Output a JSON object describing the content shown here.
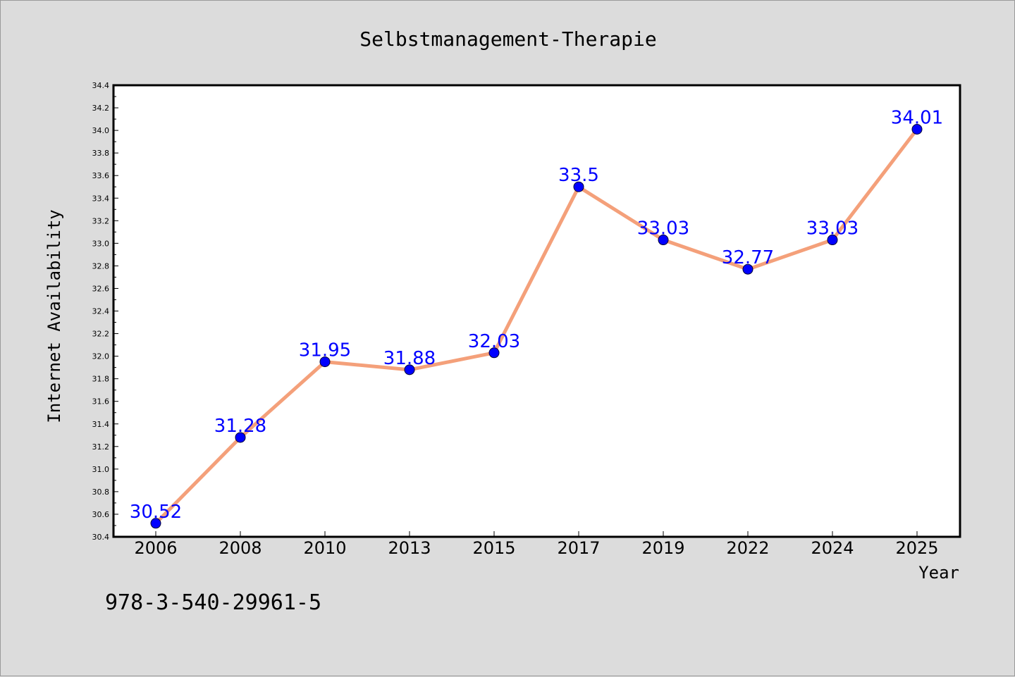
{
  "chart_data": {
    "type": "line",
    "title": "Selbstmanagement-Therapie",
    "xlabel": "Year",
    "ylabel": "Internet Availability",
    "categories": [
      "2006",
      "2008",
      "2010",
      "2013",
      "2015",
      "2017",
      "2019",
      "2022",
      "2024",
      "2025"
    ],
    "series": [
      {
        "values": [
          30.52,
          31.28,
          31.95,
          31.88,
          32.03,
          33.5,
          33.03,
          32.77,
          33.03,
          34.01
        ]
      }
    ],
    "data_labels": [
      "30.52",
      "31.28",
      "31.95",
      "31.88",
      "32.03",
      "33.5",
      "33.03",
      "32.77",
      "33.03",
      "34.01"
    ],
    "ylim": [
      30.4,
      34.4
    ],
    "yticks": [
      "30.4",
      "30.6",
      "30.8",
      "31.0",
      "31.2",
      "31.4",
      "31.6",
      "31.8",
      "32.0",
      "32.2",
      "32.4",
      "32.6",
      "32.8",
      "33.0",
      "33.2",
      "33.4",
      "33.6",
      "33.8",
      "34.0",
      "34.2",
      "34.4"
    ],
    "grid": false,
    "line_color": "#f4a07a",
    "marker_color": "#0000ff",
    "label_color": "#0000ff"
  },
  "footer_text": "978-3-540-29961-5"
}
